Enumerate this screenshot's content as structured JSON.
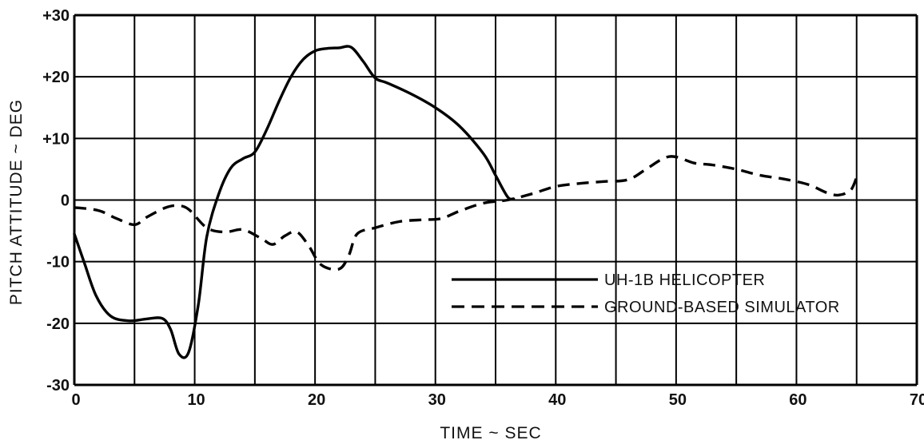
{
  "chart_data": {
    "type": "line",
    "xlabel": "TIME ~ SEC",
    "ylabel": "PITCH ATTITUDE ~ DEG",
    "xlim": [
      0,
      70
    ],
    "ylim": [
      -30,
      30
    ],
    "x_ticks": [
      0,
      10,
      20,
      30,
      40,
      50,
      60,
      70
    ],
    "x_tick_labels": [
      "0",
      "10",
      "20",
      "30",
      "40",
      "50",
      "60",
      "70"
    ],
    "y_ticks": [
      30,
      20,
      10,
      0,
      -10,
      -20,
      -30
    ],
    "y_tick_labels": [
      "+30",
      "+20",
      "+10",
      "0",
      "-10",
      "-20",
      "-30"
    ],
    "x_grid_step": 5,
    "y_grid_step": 10,
    "grid": true,
    "legend_position": "bottom-right",
    "series": [
      {
        "name": "UH-1B HELICOPTER",
        "style": "solid",
        "color": "#000000",
        "points": [
          [
            0,
            -5.5
          ],
          [
            0.8,
            -10
          ],
          [
            1.8,
            -15.5
          ],
          [
            3,
            -18.8
          ],
          [
            4.5,
            -19.6
          ],
          [
            6,
            -19.3
          ],
          [
            7.3,
            -19.2
          ],
          [
            8,
            -21
          ],
          [
            8.7,
            -25
          ],
          [
            9.5,
            -24.7
          ],
          [
            10.3,
            -17
          ],
          [
            11,
            -6
          ],
          [
            12,
            1
          ],
          [
            13,
            5.2
          ],
          [
            14,
            6.7
          ],
          [
            15,
            7.8
          ],
          [
            16,
            11.5
          ],
          [
            17,
            16
          ],
          [
            18,
            20
          ],
          [
            19,
            22.8
          ],
          [
            20,
            24.2
          ],
          [
            21,
            24.6
          ],
          [
            22,
            24.7
          ],
          [
            23,
            24.8
          ],
          [
            24,
            22.5
          ],
          [
            25,
            19.8
          ],
          [
            26,
            19
          ],
          [
            28,
            17.2
          ],
          [
            30,
            15
          ],
          [
            32,
            12
          ],
          [
            34,
            7.5
          ],
          [
            35,
            4
          ],
          [
            36,
            0.5
          ],
          [
            36.5,
            0.2
          ]
        ]
      },
      {
        "name": "GROUND-BASED SIMULATOR",
        "style": "dashed",
        "color": "#000000",
        "points": [
          [
            0,
            -1.2
          ],
          [
            2,
            -1.7
          ],
          [
            3.5,
            -3
          ],
          [
            5,
            -4
          ],
          [
            6,
            -2.8
          ],
          [
            7.5,
            -1.3
          ],
          [
            8.5,
            -0.9
          ],
          [
            9.5,
            -1.5
          ],
          [
            11,
            -4.5
          ],
          [
            12.5,
            -5.2
          ],
          [
            14,
            -4.8
          ],
          [
            15.5,
            -6.2
          ],
          [
            16.5,
            -7.2
          ],
          [
            17.5,
            -5.8
          ],
          [
            18.5,
            -5.2
          ],
          [
            19.5,
            -7.5
          ],
          [
            20.5,
            -10.5
          ],
          [
            22,
            -11.2
          ],
          [
            22.8,
            -9
          ],
          [
            23.5,
            -5.5
          ],
          [
            25,
            -4.5
          ],
          [
            27,
            -3.5
          ],
          [
            29,
            -3.2
          ],
          [
            30.5,
            -3
          ],
          [
            32,
            -1.8
          ],
          [
            34,
            -0.5
          ],
          [
            36,
            0
          ],
          [
            38,
            1
          ],
          [
            40,
            2.2
          ],
          [
            42,
            2.7
          ],
          [
            44,
            3
          ],
          [
            46,
            3.3
          ],
          [
            47.5,
            5
          ],
          [
            49,
            6.8
          ],
          [
            50,
            7
          ],
          [
            51.5,
            6
          ],
          [
            53,
            5.7
          ],
          [
            55,
            5
          ],
          [
            57,
            4
          ],
          [
            59,
            3.4
          ],
          [
            61,
            2.5
          ],
          [
            62.5,
            1.2
          ],
          [
            63.5,
            0.8
          ],
          [
            64.5,
            1.6
          ],
          [
            65,
            3.7
          ]
        ]
      }
    ]
  }
}
